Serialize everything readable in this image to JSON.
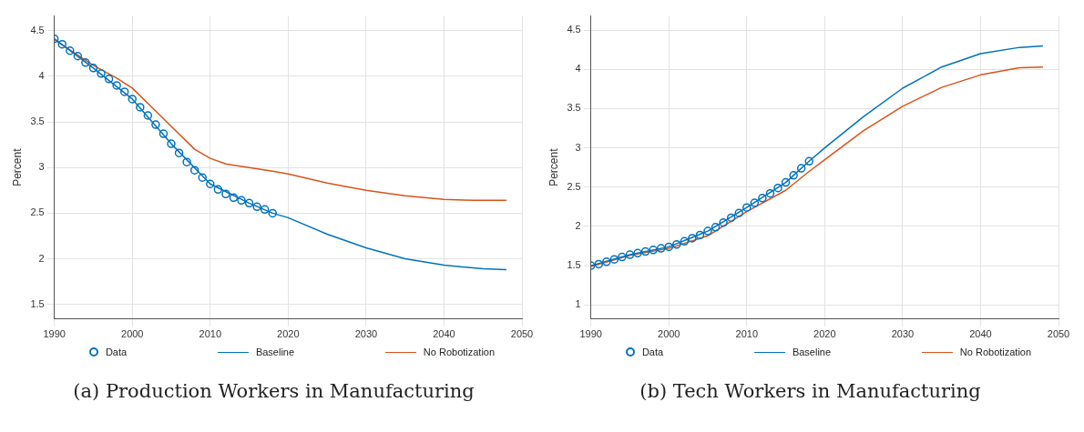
{
  "chart_data": [
    {
      "type": "line",
      "title": "(a) Production Workers in Manufacturing",
      "ylabel": "Percent",
      "xlim": [
        1990,
        2050
      ],
      "xticks": [
        1990,
        2000,
        2010,
        2020,
        2030,
        2040,
        2050
      ],
      "ylim": [
        1.34,
        4.66
      ],
      "yticks": [
        1.5,
        2,
        2.5,
        3,
        3.5,
        4,
        4.5
      ],
      "grid": true,
      "legend": "bottom",
      "series": [
        {
          "name": "Data",
          "type": "scatter",
          "marker": "circle",
          "color": "#0072bd",
          "x": [
            1990,
            1991,
            1992,
            1993,
            1994,
            1995,
            1996,
            1997,
            1998,
            1999,
            2000,
            2001,
            2002,
            2003,
            2004,
            2005,
            2006,
            2007,
            2008,
            2009,
            2010,
            2011,
            2012,
            2013,
            2014,
            2015,
            2016,
            2017,
            2018
          ],
          "values": [
            4.41,
            4.35,
            4.28,
            4.22,
            4.15,
            4.09,
            4.03,
            3.97,
            3.9,
            3.83,
            3.75,
            3.66,
            3.57,
            3.47,
            3.37,
            3.26,
            3.16,
            3.06,
            2.97,
            2.89,
            2.82,
            2.76,
            2.71,
            2.67,
            2.64,
            2.61,
            2.57,
            2.54,
            2.5
          ]
        },
        {
          "name": "Baseline",
          "marker": "none",
          "color": "#0072bd",
          "x": [
            1990,
            1995,
            2000,
            2005,
            2010,
            2015,
            2018,
            2020,
            2025,
            2030,
            2035,
            2040,
            2045,
            2048
          ],
          "values": [
            4.41,
            4.09,
            3.75,
            3.26,
            2.82,
            2.61,
            2.5,
            2.45,
            2.27,
            2.12,
            2.0,
            1.93,
            1.89,
            1.88
          ]
        },
        {
          "name": "No Robotization",
          "marker": "none",
          "color": "#d95319",
          "x": [
            1990,
            1995,
            1998,
            2000,
            2003,
            2005,
            2008,
            2010,
            2012,
            2015,
            2018,
            2020,
            2025,
            2030,
            2035,
            2040,
            2044,
            2048
          ],
          "values": [
            4.4,
            4.12,
            3.98,
            3.87,
            3.62,
            3.45,
            3.2,
            3.1,
            3.04,
            3.0,
            2.96,
            2.93,
            2.83,
            2.75,
            2.69,
            2.65,
            2.64,
            2.64
          ]
        }
      ]
    },
    {
      "type": "line",
      "title": "(b) Tech Workers in Manufacturing",
      "ylabel": "Percent",
      "xlim": [
        1990,
        2050
      ],
      "xticks": [
        1990,
        2000,
        2010,
        2020,
        2030,
        2040,
        2050
      ],
      "ylim": [
        0.82,
        4.68
      ],
      "yticks": [
        1,
        1.5,
        2,
        2.5,
        3,
        3.5,
        4,
        4.5
      ],
      "grid": true,
      "legend": "bottom",
      "series": [
        {
          "name": "Data",
          "type": "scatter",
          "marker": "circle",
          "color": "#0072bd",
          "x": [
            1990,
            1991,
            1992,
            1993,
            1994,
            1995,
            1996,
            1997,
            1998,
            1999,
            2000,
            2001,
            2002,
            2003,
            2004,
            2005,
            2006,
            2007,
            2008,
            2009,
            2010,
            2011,
            2012,
            2013,
            2014,
            2015,
            2016,
            2017,
            2018
          ],
          "values": [
            1.5,
            1.52,
            1.55,
            1.58,
            1.61,
            1.64,
            1.66,
            1.68,
            1.7,
            1.72,
            1.74,
            1.77,
            1.81,
            1.85,
            1.89,
            1.94,
            1.99,
            2.05,
            2.11,
            2.17,
            2.24,
            2.3,
            2.36,
            2.42,
            2.49,
            2.56,
            2.65,
            2.74,
            2.83
          ]
        },
        {
          "name": "Baseline",
          "marker": "none",
          "color": "#0072bd",
          "x": [
            1990,
            1995,
            2000,
            2005,
            2010,
            2015,
            2018,
            2020,
            2025,
            2030,
            2035,
            2040,
            2045,
            2048
          ],
          "values": [
            1.5,
            1.64,
            1.74,
            1.94,
            2.24,
            2.56,
            2.83,
            3.0,
            3.4,
            3.76,
            4.03,
            4.2,
            4.28,
            4.3
          ]
        },
        {
          "name": "No Robotization",
          "marker": "none",
          "color": "#d95319",
          "x": [
            1990,
            1995,
            2000,
            2005,
            2010,
            2015,
            2018,
            2020,
            2025,
            2030,
            2035,
            2040,
            2045,
            2048
          ],
          "values": [
            1.49,
            1.63,
            1.72,
            1.88,
            2.19,
            2.46,
            2.7,
            2.85,
            3.22,
            3.53,
            3.77,
            3.93,
            4.02,
            4.03
          ]
        }
      ]
    }
  ]
}
